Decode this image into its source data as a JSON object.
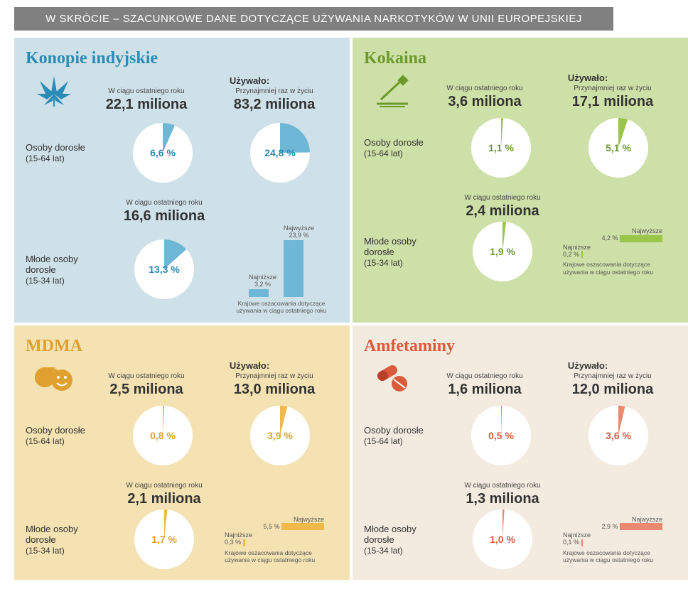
{
  "header": "W SKRÓCIE – SZACUNKOWE DANE DOTYCZĄCE UŻYWANIA NARKOTYKÓW W UNII EUROPEJSKIEJ",
  "labels": {
    "used": "Używało:",
    "last_year": "W ciągu ostatniego roku",
    "lifetime": "Przynajmniej raz w życiu",
    "adults": "Osoby dorosłe",
    "adults_age": "(15-64 lat)",
    "young": "Młode osoby dorosłe",
    "young_age": "(15-34 lat)",
    "lowest": "Najniższe",
    "highest": "Najwyższe",
    "bar_note": "Krajowe oszacowania dotyczące używania w ciągu ostatniego roku"
  },
  "panels": [
    {
      "title": "Konopie indyjskie",
      "title_color": "#2a8bb5",
      "bg": "#cfe1e8",
      "accent": "#6fb7d6",
      "accent_dark": "#2a8bb5",
      "icon": "leaf",
      "adults": {
        "last_year_val": "22,1 miliona",
        "lifetime_val": "83,2 miliona",
        "last_year_pct": 6.6,
        "last_year_pct_txt": "6,6 %",
        "lifetime_pct": 24.8,
        "lifetime_pct_txt": "24,8 %"
      },
      "young": {
        "last_year_val": "16,6 miliona",
        "last_year_pct": 13.3,
        "last_year_pct_txt": "13,3 %",
        "low": 3.2,
        "low_txt": "3,2 %",
        "high": 23.9,
        "high_txt": "23,9 %",
        "bar_style": "tall"
      }
    },
    {
      "title": "Kokaina",
      "title_color": "#6b9a2a",
      "bg": "#cde0a7",
      "accent": "#9bc44a",
      "accent_dark": "#6b9a2a",
      "icon": "line",
      "adults": {
        "last_year_val": "3,6 miliona",
        "lifetime_val": "17,1 miliona",
        "last_year_pct": 1.1,
        "last_year_pct_txt": "1,1 %",
        "lifetime_pct": 5.1,
        "lifetime_pct_txt": "5,1 %"
      },
      "young": {
        "last_year_val": "2,4 miliona",
        "last_year_pct": 1.9,
        "last_year_pct_txt": "1,9 %",
        "low": 0.2,
        "low_txt": "0,2 %",
        "high": 4.2,
        "high_txt": "4,2 %",
        "bar_style": "mini"
      }
    },
    {
      "title": "MDMA",
      "title_color": "#e0a030",
      "bg": "#f4e2b3",
      "accent": "#f0b94a",
      "accent_dark": "#e0a030",
      "icon": "smile",
      "adults": {
        "last_year_val": "2,5 miliona",
        "lifetime_val": "13,0 miliona",
        "last_year_pct": 0.8,
        "last_year_pct_txt": "0,8 %",
        "lifetime_pct": 3.9,
        "lifetime_pct_txt": "3,9 %"
      },
      "young": {
        "last_year_val": "2,1 miliona",
        "last_year_pct": 1.7,
        "last_year_pct_txt": "1,7 %",
        "low": 0.3,
        "low_txt": "0,3 %",
        "high": 5.5,
        "high_txt": "5,5 %",
        "bar_style": "mini"
      }
    },
    {
      "title": "Amfetaminy",
      "title_color": "#d95b3c",
      "bg": "#f4ebe0",
      "accent": "#e9896f",
      "accent_dark": "#d95b3c",
      "icon": "pill",
      "adults": {
        "last_year_val": "1,6 miliona",
        "lifetime_val": "12,0 miliona",
        "last_year_pct": 0.5,
        "last_year_pct_txt": "0,5 %",
        "lifetime_pct": 3.6,
        "lifetime_pct_txt": "3,6 %"
      },
      "young": {
        "last_year_val": "1,3 miliona",
        "last_year_pct": 1.0,
        "last_year_pct_txt": "1,0 %",
        "low": 0.1,
        "low_txt": "0,1 %",
        "high": 2.9,
        "high_txt": "2,9 %",
        "bar_style": "mini"
      }
    }
  ],
  "style": {
    "pie_radius": 42,
    "pie_bg": "#ffffff",
    "tall_bar_max_h": 80,
    "mini_bar_max_w": 60
  }
}
